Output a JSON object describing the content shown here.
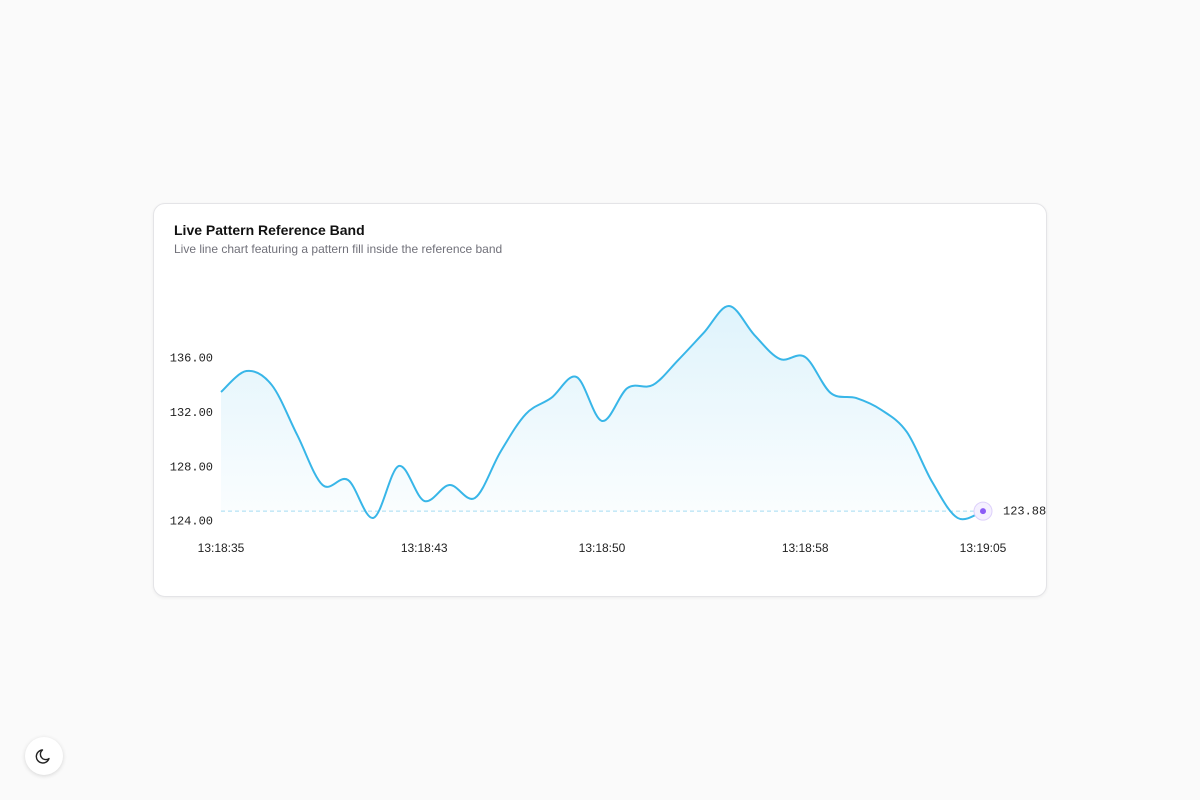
{
  "chart_data": {
    "type": "line",
    "title": "Live Pattern Reference Band",
    "subtitle": "Live line chart featuring a pattern fill inside the reference band",
    "categories": [
      "13:18:35",
      null,
      null,
      null,
      null,
      null,
      null,
      null,
      "13:18:43",
      null,
      null,
      null,
      null,
      null,
      null,
      "13:18:50",
      null,
      null,
      null,
      null,
      null,
      null,
      null,
      "13:18:58",
      null,
      null,
      null,
      null,
      null,
      null,
      "13:19:05"
    ],
    "values": [
      132.64,
      134.18,
      133.15,
      129.48,
      125.8,
      126.17,
      123.38,
      127.2,
      124.63,
      125.8,
      124.85,
      128.23,
      131.02,
      132.2,
      133.74,
      130.51,
      132.93,
      133.15,
      134.99,
      136.98,
      138.96,
      136.83,
      135.07,
      135.21,
      132.57,
      132.2,
      131.32,
      129.7,
      126.02,
      123.38,
      123.88
    ],
    "color": "#38b6e8",
    "marker_color": "#8b5cf6",
    "ylim": [
      122.5,
      141
    ],
    "yticks": [
      {
        "value": 124,
        "label": "124.00"
      },
      {
        "value": 128,
        "label": "128.00"
      },
      {
        "value": 132,
        "label": "132.00"
      },
      {
        "value": 136,
        "label": "136.00"
      }
    ],
    "grid": false
  }
}
